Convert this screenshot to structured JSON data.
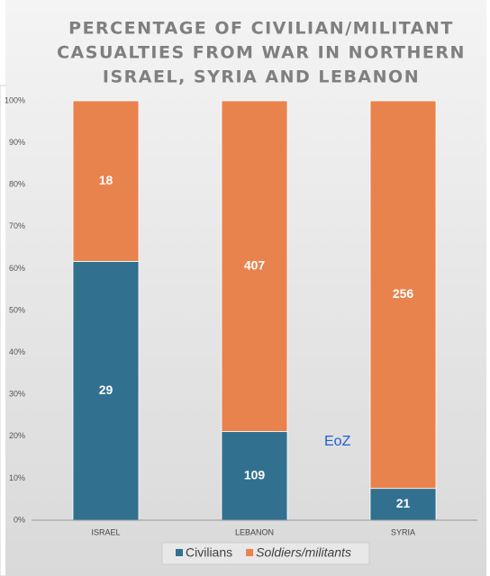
{
  "chart_data": {
    "type": "bar",
    "stacking": "percent",
    "title": [
      "PERCENTAGE OF CIVILIAN/MILITANT",
      "CASUALTIES FROM WAR  IN NORTHERN",
      "ISRAEL, SYRIA AND LEBANON"
    ],
    "categories": [
      "ISRAEL",
      "LEBANON",
      "SYRIA"
    ],
    "series": [
      {
        "name": "Civilians",
        "color": "#31708f",
        "values": [
          29,
          109,
          21
        ]
      },
      {
        "name": "Soldiers/militants",
        "color": "#e8834e",
        "values": [
          18,
          407,
          256
        ]
      }
    ],
    "ylim": [
      0,
      100
    ],
    "yticks": [
      {
        "value": 0,
        "label": "0%"
      },
      {
        "value": 10,
        "label": "10%"
      },
      {
        "value": 20,
        "label": "20%"
      },
      {
        "value": 30,
        "label": "30%"
      },
      {
        "value": 40,
        "label": "40%"
      },
      {
        "value": 50,
        "label": "50%"
      },
      {
        "value": 60,
        "label": "60%"
      },
      {
        "value": 70,
        "label": "70%"
      },
      {
        "value": 80,
        "label": "80%"
      },
      {
        "value": 90,
        "label": "90%"
      },
      {
        "value": 100,
        "label": "100%"
      }
    ],
    "grid": false,
    "legend": "bottom",
    "annotation": "EoZ"
  }
}
